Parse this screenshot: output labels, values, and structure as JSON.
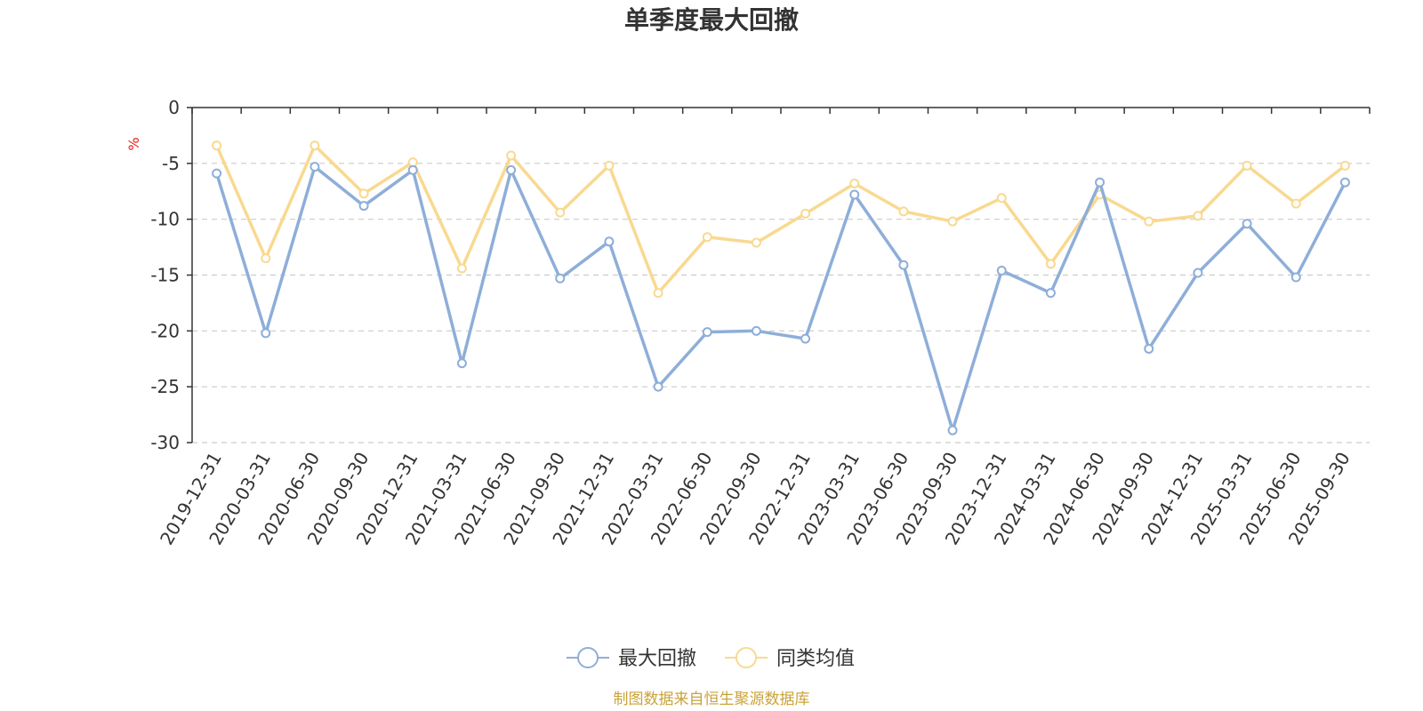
{
  "chart_data": {
    "type": "line",
    "title": "单季度最大回撤",
    "ylabel": "%",
    "categories": [
      "2019-12-31",
      "2020-03-31",
      "2020-06-30",
      "2020-09-30",
      "2020-12-31",
      "2021-03-31",
      "2021-06-30",
      "2021-09-30",
      "2021-12-31",
      "2022-03-31",
      "2022-06-30",
      "2022-09-30",
      "2022-12-31",
      "2023-03-31",
      "2023-06-30",
      "2023-09-30",
      "2023-12-31",
      "2024-03-31",
      "2024-06-30",
      "2024-09-30",
      "2024-12-31",
      "2025-03-31",
      "2025-06-30",
      "2025-09-30"
    ],
    "y_ticks": [
      "0",
      "-5",
      "-10",
      "-15",
      "-20",
      "-25",
      "-30"
    ],
    "ylim": [
      -30,
      0
    ],
    "grid": true,
    "legend_position": "bottom",
    "series": [
      {
        "name": "最大回撤",
        "color": "#8eaed9",
        "values": [
          -5.9,
          -20.2,
          -5.3,
          -8.8,
          -5.6,
          -22.9,
          -5.6,
          -15.3,
          -12.0,
          -25.0,
          -20.1,
          -20.0,
          -20.7,
          -7.8,
          -14.1,
          -28.9,
          -14.6,
          -16.6,
          -6.7,
          -21.6,
          -14.8,
          -10.4,
          -15.2,
          -6.7
        ]
      },
      {
        "name": "同类均值",
        "color": "#f9d990",
        "values": [
          -3.4,
          -13.5,
          -3.4,
          -7.7,
          -4.9,
          -14.4,
          -4.3,
          -9.4,
          -5.2,
          -16.6,
          -11.6,
          -12.1,
          -9.5,
          -6.8,
          -9.3,
          -10.2,
          -8.1,
          -14.0,
          -7.8,
          -10.2,
          -9.7,
          -5.2,
          -8.6,
          -5.2
        ]
      }
    ],
    "source": "制图数据来自恒生聚源数据库",
    "colors": {
      "axis": "#333333",
      "grid": "#cccccc",
      "unit": "#e8201a",
      "source": "#c9a338"
    }
  }
}
